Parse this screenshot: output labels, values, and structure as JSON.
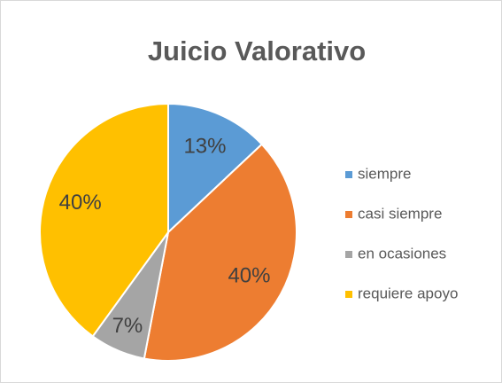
{
  "chart_data": {
    "type": "pie",
    "title": "Juicio Valorativo",
    "categories": [
      "siempre",
      "casi siempre",
      "en ocasiones",
      "requiere apoyo"
    ],
    "values": [
      13,
      40,
      7,
      40
    ],
    "value_labels": [
      "13%",
      "40%",
      "7%",
      "40%"
    ],
    "colors": [
      "#5b9bd5",
      "#ed7d31",
      "#a5a5a5",
      "#ffc000"
    ],
    "legend": "right"
  }
}
